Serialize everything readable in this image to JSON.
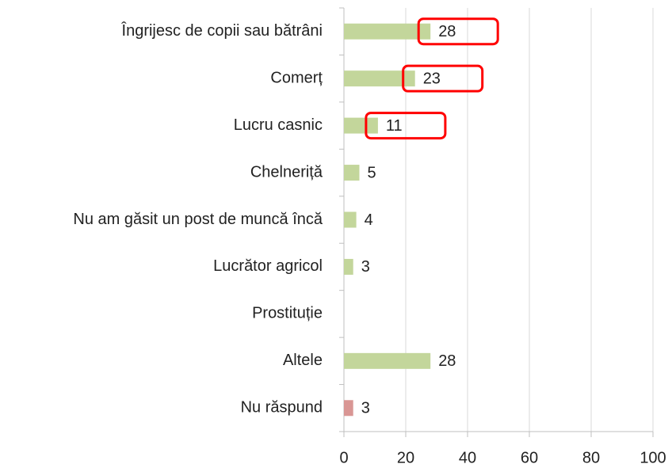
{
  "chart_data": {
    "type": "bar",
    "orientation": "horizontal",
    "categories": [
      "Îngrijesc de copii sau bătrâni",
      "Comerț",
      "Lucru casnic",
      "Chelneriță",
      "Nu am găsit un post de muncă încă",
      "Lucrător agricol",
      "Prostituție",
      "Altele",
      "Nu răspund"
    ],
    "values": [
      28,
      23,
      11,
      5,
      4,
      3,
      null,
      28,
      3
    ],
    "colors": [
      "#c3d69b",
      "#c3d69b",
      "#c3d69b",
      "#c3d69b",
      "#c3d69b",
      "#c3d69b",
      "#c3d69b",
      "#c3d69b",
      "#d99694"
    ],
    "highlighted": [
      true,
      true,
      true,
      false,
      false,
      false,
      false,
      false,
      false
    ],
    "highlight_color": "#ff0000",
    "xlim": [
      0,
      100
    ],
    "xticks": [
      0,
      20,
      40,
      60,
      80,
      100
    ],
    "grid": true
  }
}
